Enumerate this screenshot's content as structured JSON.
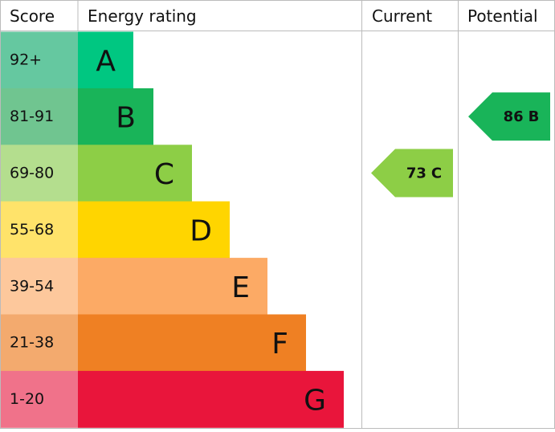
{
  "header": {
    "score": "Score",
    "rating": "Energy rating",
    "current": "Current",
    "potential": "Potential"
  },
  "rows": [
    {
      "range": "92+",
      "letter": "A",
      "color": "#00c781",
      "score_color": "#65c8a0"
    },
    {
      "range": "81-91",
      "letter": "B",
      "color": "#19b459",
      "score_color": "#70c590"
    },
    {
      "range": "69-80",
      "letter": "C",
      "color": "#8dce46",
      "score_color": "#b4de8e"
    },
    {
      "range": "55-68",
      "letter": "D",
      "color": "#ffd500",
      "score_color": "#ffe36a"
    },
    {
      "range": "39-54",
      "letter": "E",
      "color": "#fcaa65",
      "score_color": "#fdc89c"
    },
    {
      "range": "21-38",
      "letter": "F",
      "color": "#ef8023",
      "score_color": "#f3aa6e"
    },
    {
      "range": "1-20",
      "letter": "G",
      "color": "#e9153b",
      "score_color": "#f0728a"
    }
  ],
  "current": {
    "score": 73,
    "band": "C"
  },
  "potential": {
    "score": 86,
    "band": "B"
  }
}
